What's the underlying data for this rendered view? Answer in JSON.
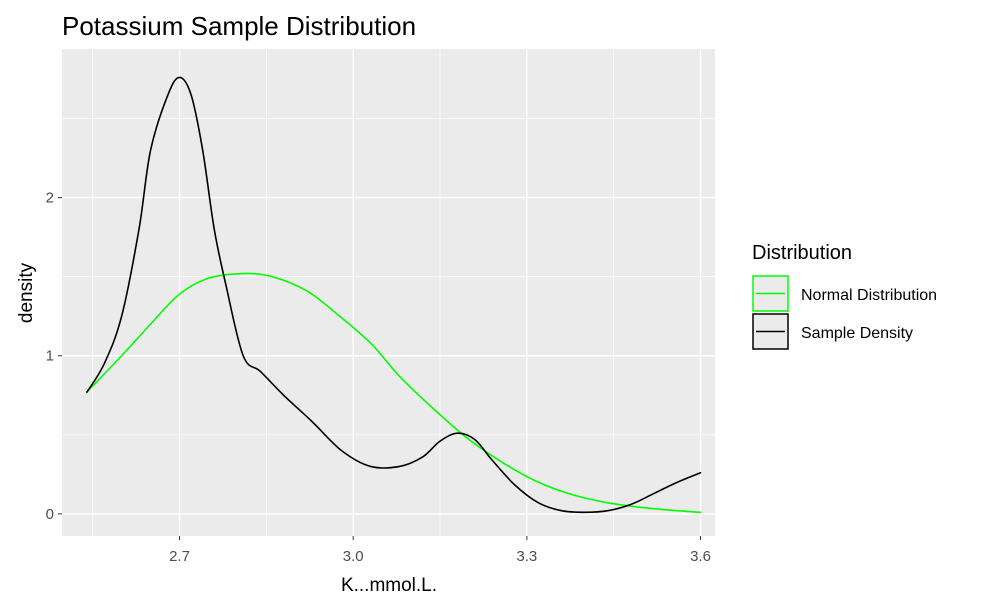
{
  "chart_data": {
    "type": "line",
    "title": "Potassium Sample Distribution",
    "xlabel": "K...mmol.L.",
    "ylabel": "density",
    "xlim": [
      2.497,
      3.625
    ],
    "ylim": [
      -0.14,
      2.94
    ],
    "x_ticks": [
      2.7,
      3.0,
      3.3,
      3.6
    ],
    "x_tick_labels": [
      "2.7",
      "3.0",
      "3.3",
      "3.6"
    ],
    "y_ticks": [
      0,
      1,
      2
    ],
    "y_tick_labels": [
      "0",
      "1",
      "2"
    ],
    "grid": true,
    "legend": {
      "title": "Distribution",
      "position": "right",
      "entries": [
        {
          "label": "Normal Distribution",
          "color": "#00ff00"
        },
        {
          "label": "Sample Density",
          "color": "#000000"
        }
      ]
    },
    "series": [
      {
        "name": "Normal Distribution",
        "color": "#00ff00",
        "x": [
          2.54,
          2.6,
          2.65,
          2.7,
          2.75,
          2.81,
          2.86,
          2.92,
          2.97,
          3.03,
          3.08,
          3.14,
          3.2,
          3.26,
          3.32,
          3.38,
          3.44,
          3.5,
          3.56,
          3.6
        ],
        "y": [
          0.77,
          1.0,
          1.2,
          1.39,
          1.49,
          1.52,
          1.5,
          1.41,
          1.27,
          1.08,
          0.87,
          0.66,
          0.47,
          0.32,
          0.2,
          0.12,
          0.07,
          0.04,
          0.02,
          0.01
        ]
      },
      {
        "name": "Sample Density",
        "color": "#000000",
        "x": [
          2.54,
          2.57,
          2.6,
          2.63,
          2.65,
          2.68,
          2.7,
          2.72,
          2.74,
          2.76,
          2.78,
          2.81,
          2.84,
          2.88,
          2.93,
          2.98,
          3.03,
          3.08,
          3.12,
          3.15,
          3.18,
          3.21,
          3.24,
          3.28,
          3.32,
          3.36,
          3.4,
          3.44,
          3.48,
          3.52,
          3.56,
          3.6
        ],
        "y": [
          0.77,
          0.95,
          1.25,
          1.8,
          2.3,
          2.65,
          2.76,
          2.65,
          2.3,
          1.8,
          1.45,
          1.0,
          0.9,
          0.75,
          0.58,
          0.4,
          0.3,
          0.3,
          0.36,
          0.46,
          0.51,
          0.47,
          0.34,
          0.18,
          0.07,
          0.02,
          0.01,
          0.02,
          0.06,
          0.13,
          0.2,
          0.26
        ]
      }
    ]
  }
}
